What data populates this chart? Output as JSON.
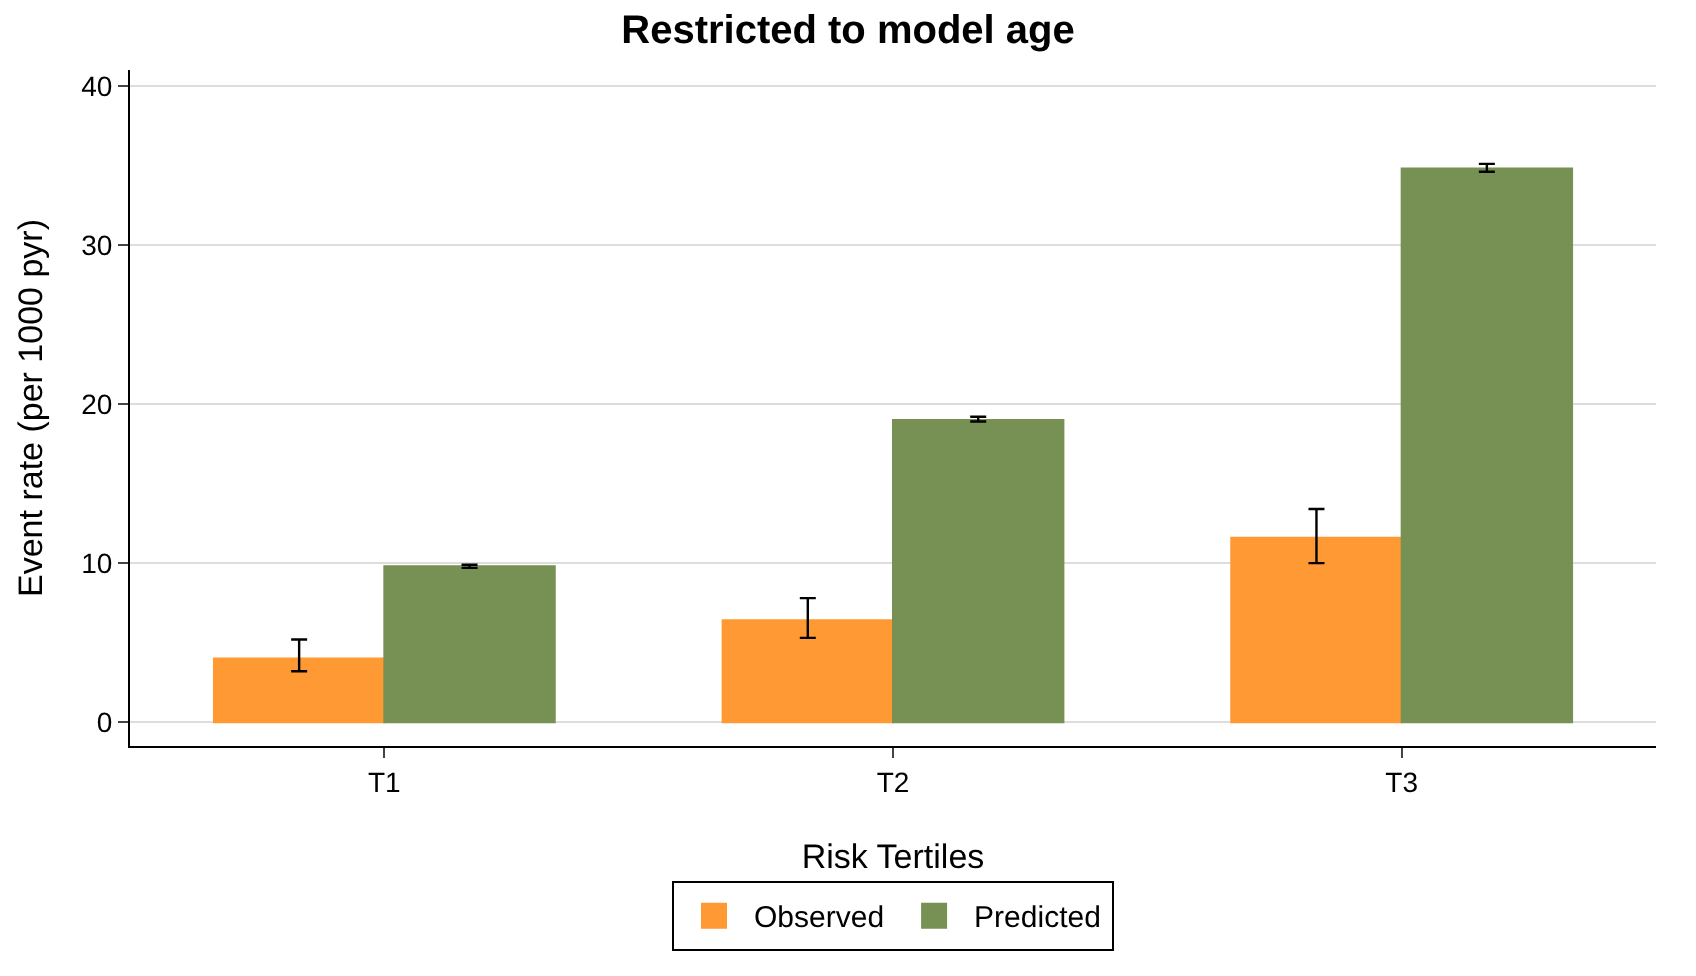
{
  "chart_data": {
    "type": "bar",
    "title": "Restricted to model age",
    "xlabel": "Risk Tertiles",
    "ylabel": "Event rate (per 1000 pyr)",
    "categories": [
      "T1",
      "T2",
      "T3"
    ],
    "series": [
      {
        "name": "Observed",
        "color": "#ff9933",
        "values": [
          4.0,
          6.4,
          11.6
        ],
        "errors": [
          [
            3.2,
            5.2
          ],
          [
            5.3,
            7.8
          ],
          [
            10.0,
            13.4
          ]
        ]
      },
      {
        "name": "Predicted",
        "color": "#779155",
        "values": [
          9.8,
          19.0,
          34.8
        ],
        "errors": [
          [
            9.7,
            9.9
          ],
          [
            18.9,
            19.2
          ],
          [
            34.6,
            35.1
          ]
        ]
      }
    ],
    "ylim": [
      -1.5,
      41
    ],
    "yticks": [
      0,
      10,
      20,
      30,
      40
    ],
    "grid": "y",
    "legend": "bottom"
  }
}
